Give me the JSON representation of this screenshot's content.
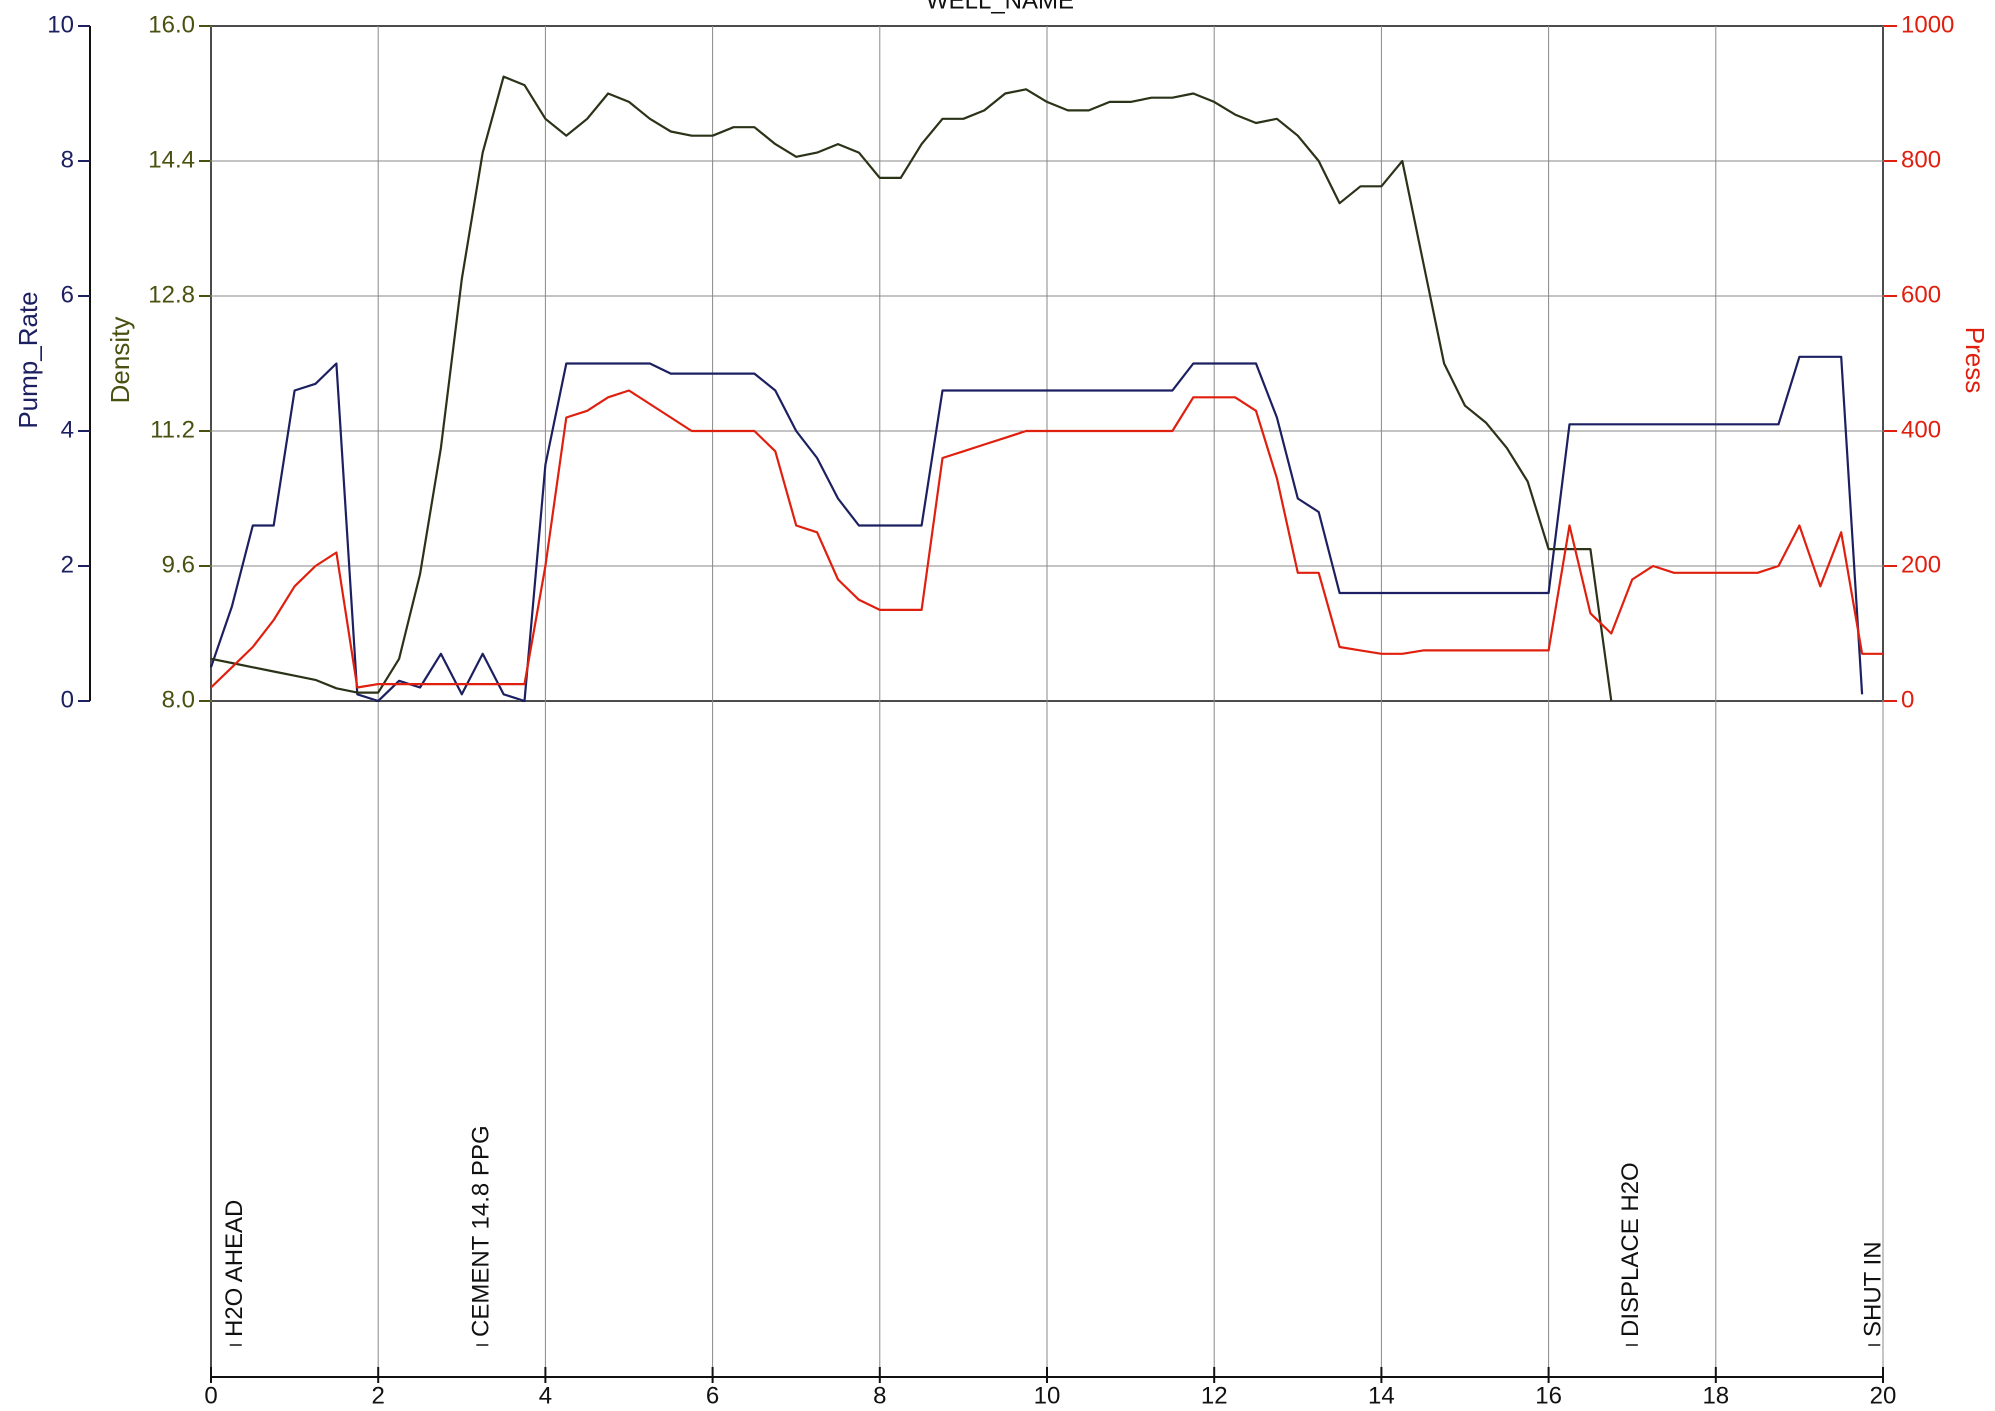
{
  "chart_data": {
    "type": "line",
    "title": "WELL_NAME",
    "x": [
      0,
      0.25,
      0.5,
      0.75,
      1,
      1.25,
      1.5,
      1.75,
      2,
      2.25,
      2.5,
      2.75,
      3,
      3.25,
      3.5,
      3.75,
      4,
      4.25,
      4.5,
      4.75,
      5,
      5.25,
      5.5,
      5.75,
      6,
      6.25,
      6.5,
      6.75,
      7,
      7.25,
      7.5,
      7.75,
      8,
      8.25,
      8.5,
      8.75,
      9,
      9.25,
      9.5,
      9.75,
      10,
      10.25,
      10.5,
      10.75,
      11,
      11.25,
      11.5,
      11.75,
      12,
      12.25,
      12.5,
      12.75,
      13,
      13.25,
      13.5,
      13.75,
      14,
      14.25,
      14.5,
      14.75,
      15,
      15.25,
      15.5,
      15.75,
      16,
      16.25,
      16.5,
      16.75,
      17,
      17.25,
      17.5,
      17.75,
      18,
      18.25,
      18.5,
      18.75,
      19,
      19.25,
      19.5,
      19.75,
      20
    ],
    "series": [
      {
        "name": "Pump_Rate",
        "color": "#1c2060",
        "axis": "y",
        "values": [
          0.5,
          1.4,
          2.6,
          2.6,
          4.6,
          4.7,
          5.0,
          0.1,
          0,
          0.3,
          0.2,
          0.7,
          0.1,
          0.7,
          0.1,
          0,
          3.5,
          5.0,
          5.0,
          5.0,
          5.0,
          5.0,
          4.85,
          4.85,
          4.85,
          4.85,
          4.85,
          4.6,
          4.0,
          3.6,
          3.0,
          2.6,
          2.6,
          2.6,
          2.6,
          4.6,
          4.6,
          4.6,
          4.6,
          4.6,
          4.6,
          4.6,
          4.6,
          4.6,
          4.6,
          4.6,
          4.6,
          5.0,
          5.0,
          5.0,
          5.0,
          4.2,
          3.0,
          2.8,
          1.6,
          1.6,
          1.6,
          1.6,
          1.6,
          1.6,
          1.6,
          1.6,
          1.6,
          1.6,
          1.6,
          4.1,
          4.1,
          4.1,
          4.1,
          4.1,
          4.1,
          4.1,
          4.1,
          4.1,
          4.1,
          4.1,
          5.1,
          5.1,
          5.1,
          0.1,
          null
        ]
      },
      {
        "name": "Density",
        "color": "#2a3318",
        "axis": "y3",
        "values": [
          8.5,
          8.45,
          8.4,
          8.35,
          8.3,
          8.25,
          8.15,
          8.1,
          8.1,
          8.5,
          9.5,
          11.0,
          13.0,
          14.5,
          15.4,
          15.3,
          14.9,
          14.7,
          14.9,
          15.2,
          15.1,
          14.9,
          14.75,
          14.7,
          14.7,
          14.8,
          14.8,
          14.6,
          14.45,
          14.5,
          14.6,
          14.5,
          14.2,
          14.2,
          14.6,
          14.9,
          14.9,
          15.0,
          15.2,
          15.25,
          15.1,
          15.0,
          15.0,
          15.1,
          15.1,
          15.15,
          15.15,
          15.2,
          15.1,
          14.95,
          14.85,
          14.9,
          14.7,
          14.4,
          13.9,
          14.1,
          14.1,
          14.4,
          13.2,
          12.0,
          11.5,
          11.3,
          11.0,
          10.6,
          9.8,
          9.8,
          9.8,
          8.0,
          null,
          null,
          null,
          null,
          null,
          null,
          null,
          null,
          null,
          null,
          null,
          null,
          null
        ]
      },
      {
        "name": "Press",
        "color": "#e0200f",
        "axis": "y2",
        "values": [
          20,
          50,
          80,
          120,
          170,
          200,
          220,
          20,
          25,
          25,
          25,
          25,
          25,
          25,
          25,
          25,
          200,
          420,
          430,
          450,
          460,
          440,
          420,
          400,
          400,
          400,
          400,
          370,
          260,
          250,
          180,
          150,
          135,
          135,
          135,
          360,
          370,
          380,
          390,
          400,
          400,
          400,
          400,
          400,
          400,
          400,
          400,
          450,
          450,
          450,
          430,
          330,
          190,
          190,
          80,
          75,
          70,
          70,
          75,
          75,
          75,
          75,
          75,
          75,
          75,
          260,
          130,
          100,
          180,
          200,
          190,
          190,
          190,
          190,
          190,
          200,
          260,
          170,
          250,
          70,
          70
        ]
      }
    ],
    "xlim": [
      0,
      20
    ],
    "xticks": [
      0,
      2,
      4,
      6,
      8,
      10,
      12,
      14,
      16,
      18,
      20
    ],
    "ylim": [
      0,
      10
    ],
    "yticks": [
      0,
      2,
      4,
      6,
      8,
      10
    ],
    "y3lim": [
      8,
      16
    ],
    "y3ticks": [
      {
        "value": 8,
        "label": "8.0"
      },
      {
        "value": 9.6,
        "label": "9.6"
      },
      {
        "value": 11.2,
        "label": "11.2"
      },
      {
        "value": 12.8,
        "label": "12.8"
      },
      {
        "value": 14.4,
        "label": "14.4"
      },
      {
        "value": 16,
        "label": "16.0"
      }
    ],
    "y2lim": [
      0,
      1000
    ],
    "y2ticks": [
      0,
      200,
      400,
      600,
      800,
      1000
    ],
    "grid": true,
    "annotations": [
      {
        "x": 0.2,
        "text": "H2O AHEAD"
      },
      {
        "x": 3.15,
        "text": "CEMENT 14.8 PPG"
      },
      {
        "x": 16.9,
        "text": "DISPLACE H2O"
      },
      {
        "x": 19.8,
        "text": "SHUT IN"
      }
    ]
  }
}
